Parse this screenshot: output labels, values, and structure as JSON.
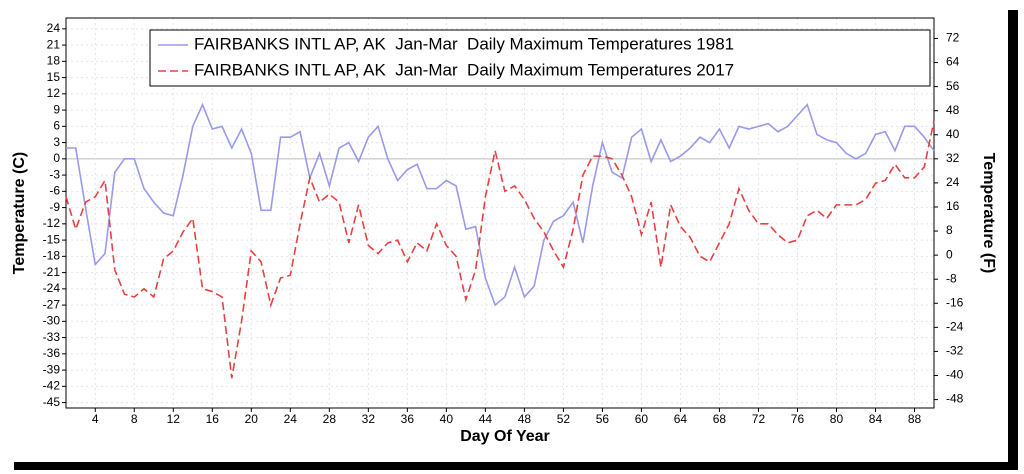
{
  "chart_data": {
    "type": "line",
    "series": [
      {
        "name": "FAIRBANKS INTL AP, AK  Jan-Mar  Daily Maximum Temperatures 1981",
        "color": "#9999ee",
        "dash": "solid",
        "values": [
          2,
          2,
          -9,
          -19.5,
          -17.5,
          -2.5,
          0,
          0,
          -5.5,
          -8,
          -10,
          -10.5,
          -3,
          6,
          10,
          5.5,
          6,
          2,
          5.5,
          1,
          -9.5,
          -9.5,
          4,
          4,
          5,
          -3.5,
          1,
          -5,
          2,
          3,
          -0.5,
          4,
          6,
          0,
          -4,
          -2,
          -1,
          -5.5,
          -5.5,
          -4,
          -5,
          -13,
          -12.5,
          -22,
          -27,
          -25.5,
          -20,
          -25.5,
          -23.5,
          -15,
          -11.5,
          -10.5,
          -8,
          -15.5,
          -5,
          3,
          -2.5,
          -3.5,
          4,
          5.5,
          -0.5,
          3.5,
          -0.5,
          0.5,
          2,
          4,
          3,
          5.5,
          2,
          6,
          5.5,
          6,
          6.5,
          5,
          6,
          8,
          10,
          4.5,
          3.5,
          3,
          1,
          0,
          1,
          4.5,
          5,
          1.5,
          6,
          6,
          4,
          1.5
        ]
      },
      {
        "name": "FAIRBANKS INTL AP, AK  Jan-Mar  Daily Maximum Temperatures 2017",
        "color": "#e84040",
        "dash": "dashed",
        "values": [
          -7,
          -13,
          -8,
          -7,
          -4,
          -20.5,
          -25,
          -25.5,
          -24,
          -25.5,
          -18.5,
          -17,
          -13.5,
          -11,
          -24,
          -24.5,
          -25.5,
          -40.5,
          -30,
          -17,
          -19,
          -27,
          -22,
          -21.5,
          -12,
          -3.5,
          -8,
          -6.5,
          -8,
          -15.5,
          -8.5,
          -16,
          -17.5,
          -15.5,
          -15,
          -19,
          -15.5,
          -17,
          -12,
          -16,
          -18,
          -26,
          -20.5,
          -7,
          1.5,
          -6,
          -5,
          -7.5,
          -11,
          -13.5,
          -17,
          -20,
          -13,
          -3,
          0.5,
          0.5,
          0,
          -3,
          -7,
          -14,
          -8,
          -20,
          -8.5,
          -12.5,
          -14.5,
          -18,
          -19,
          -15.5,
          -12,
          -5.5,
          -9.5,
          -12,
          -12,
          -14,
          -15.5,
          -15,
          -10.5,
          -9.5,
          -11,
          -8.5,
          -8.5,
          -8.5,
          -7.5,
          -4.5,
          -4,
          -1,
          -3.5,
          -3.5,
          -1.5,
          7
        ]
      }
    ],
    "x": [
      1,
      2,
      3,
      4,
      5,
      6,
      7,
      8,
      9,
      10,
      11,
      12,
      13,
      14,
      15,
      16,
      17,
      18,
      19,
      20,
      21,
      22,
      23,
      24,
      25,
      26,
      27,
      28,
      29,
      30,
      31,
      32,
      33,
      34,
      35,
      36,
      37,
      38,
      39,
      40,
      41,
      42,
      43,
      44,
      45,
      46,
      47,
      48,
      49,
      50,
      51,
      52,
      53,
      54,
      55,
      56,
      57,
      58,
      59,
      60,
      61,
      62,
      63,
      64,
      65,
      66,
      67,
      68,
      69,
      70,
      71,
      72,
      73,
      74,
      75,
      76,
      77,
      78,
      79,
      80,
      81,
      82,
      83,
      84,
      85,
      86,
      87,
      88,
      89,
      90
    ],
    "xlabel": "Day Of Year",
    "ylabel": "Temperature (C)",
    "y2label": "Temperature (F)",
    "xlim": [
      1,
      90
    ],
    "xticks": [
      4,
      8,
      12,
      16,
      20,
      24,
      28,
      32,
      36,
      40,
      44,
      48,
      52,
      56,
      60,
      64,
      68,
      72,
      76,
      80,
      84,
      88
    ],
    "ylim": [
      -46,
      26
    ],
    "yticks": [
      24,
      21,
      18,
      15,
      12,
      9,
      6,
      3,
      0,
      -3,
      -6,
      -9,
      -12,
      -15,
      -18,
      -21,
      -24,
      -27,
      -30,
      -33,
      -36,
      -39,
      -42,
      -45
    ],
    "y2lim": [
      -50.8,
      78.8
    ],
    "y2ticks": [
      72,
      64,
      56,
      48,
      40,
      32,
      24,
      16,
      8,
      0,
      -8,
      -16,
      -24,
      -32,
      -40,
      -48
    ],
    "grid": true,
    "legend": "upper right"
  }
}
